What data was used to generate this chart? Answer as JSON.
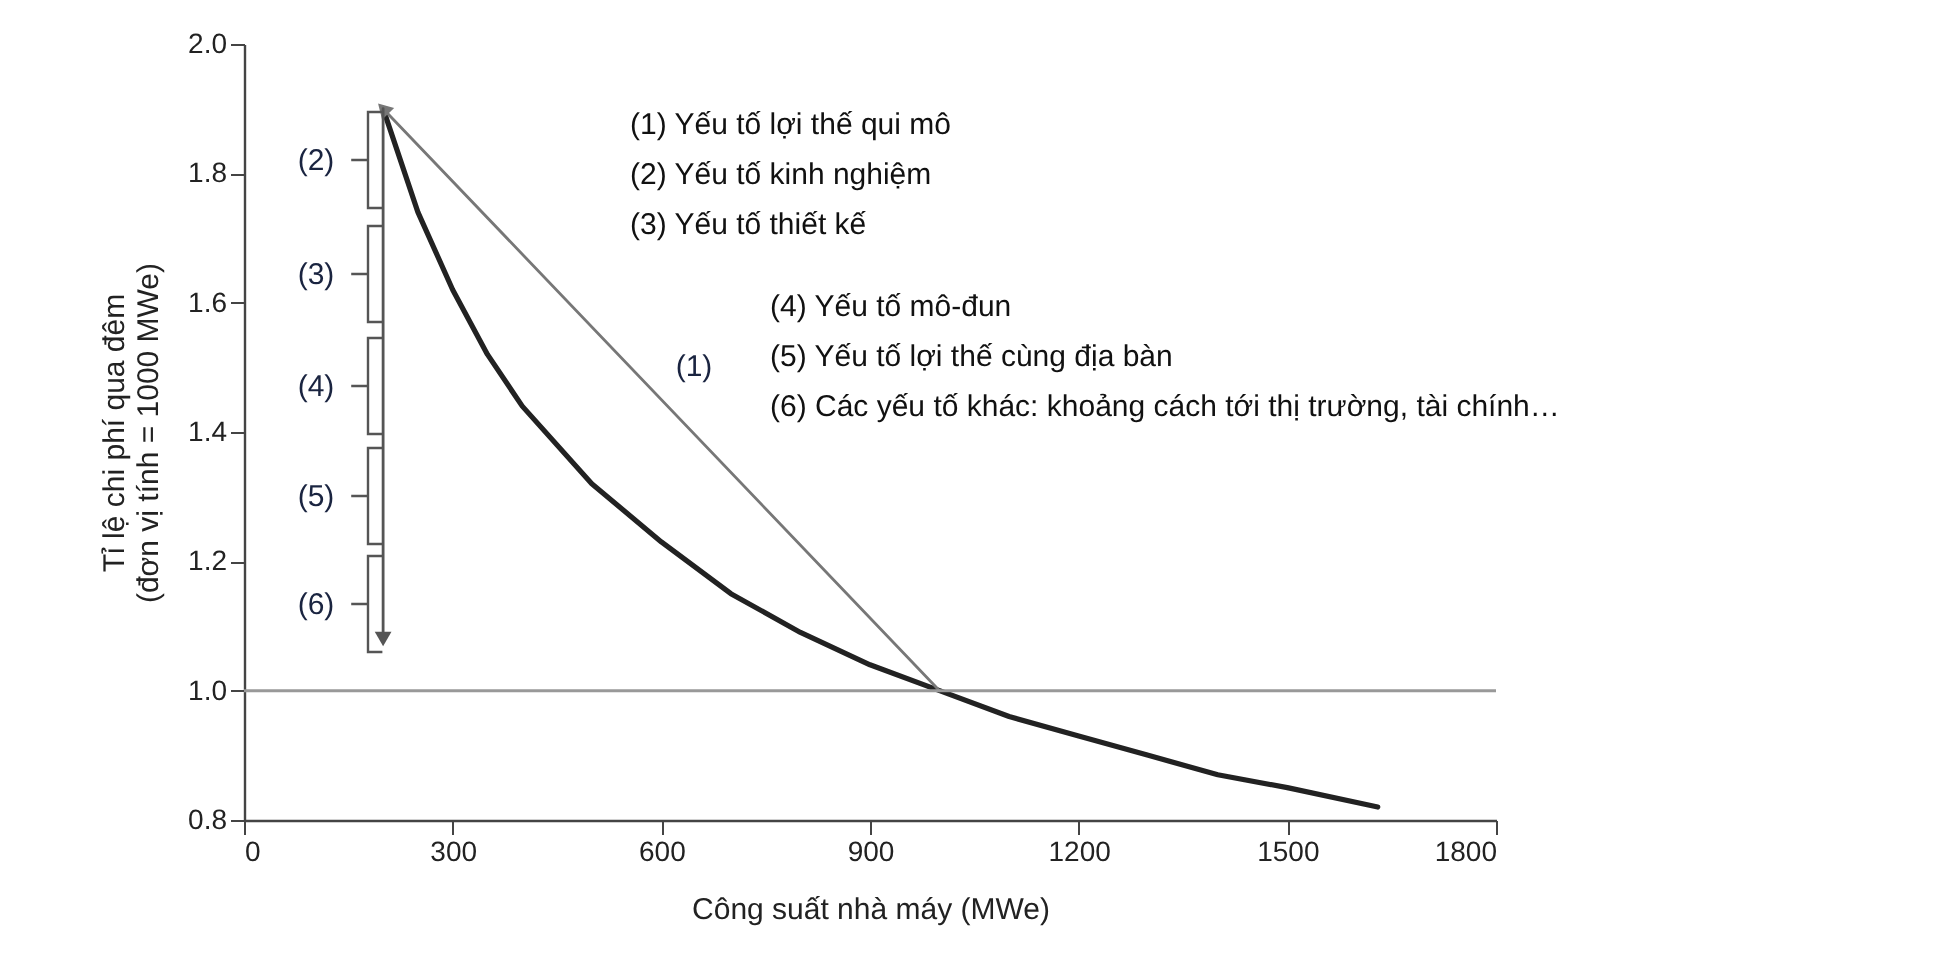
{
  "chart_data": {
    "type": "line",
    "xlabel": "Công suất nhà máy (MWe)",
    "ylabel": "Tỉ lệ chi phí qua đêm\n(đơn vị tính = 1000 MWe)",
    "xlim": [
      0,
      1800
    ],
    "xticks": [
      0,
      300,
      600,
      900,
      1200,
      1500,
      1800
    ],
    "ylim": [
      0.8,
      2.0
    ],
    "yticks": [
      0.8,
      {
        "value": 1.0,
        "label": "1.0"
      },
      1.2,
      1.4,
      1.6,
      1.8,
      {
        "value": 2.0,
        "label": "2.0"
      }
    ],
    "series": [
      {
        "color": "#222222",
        "x": [
          200,
          250,
          300,
          350,
          400,
          500,
          600,
          700,
          800,
          900,
          1000,
          1100,
          1200,
          1300,
          1400,
          1500,
          1630
        ],
        "values": [
          1.9,
          1.74,
          1.62,
          1.52,
          1.44,
          1.32,
          1.23,
          1.15,
          1.09,
          1.04,
          1.0,
          0.96,
          0.93,
          0.9,
          0.87,
          0.85,
          0.82
        ]
      },
      {
        "color": "#777777",
        "x": [
          1000,
          200
        ],
        "values": [
          1.0,
          1.9
        ]
      },
      {
        "color": "#555555",
        "x": [
          200,
          200
        ],
        "values": [
          1.9,
          1.08
        ]
      }
    ],
    "ref_lines": [
      {
        "axis": "y",
        "value": 1.0,
        "color": "#999999"
      }
    ],
    "annotations": [
      "(1) Yếu tố lợi thế qui mô",
      "(2) Yếu tố kinh nghiệm",
      "(3) Yếu tố thiết kế",
      "(4) Yếu tố mô-đun",
      "(5) Yếu tố lợi thế cùng địa bàn",
      "(6) Các yếu tố khác: khoảng cách tới thị trường, tài chính…",
      "(1)",
      "(2)",
      "(3)",
      "(4)",
      "(5)",
      "(6)"
    ]
  }
}
